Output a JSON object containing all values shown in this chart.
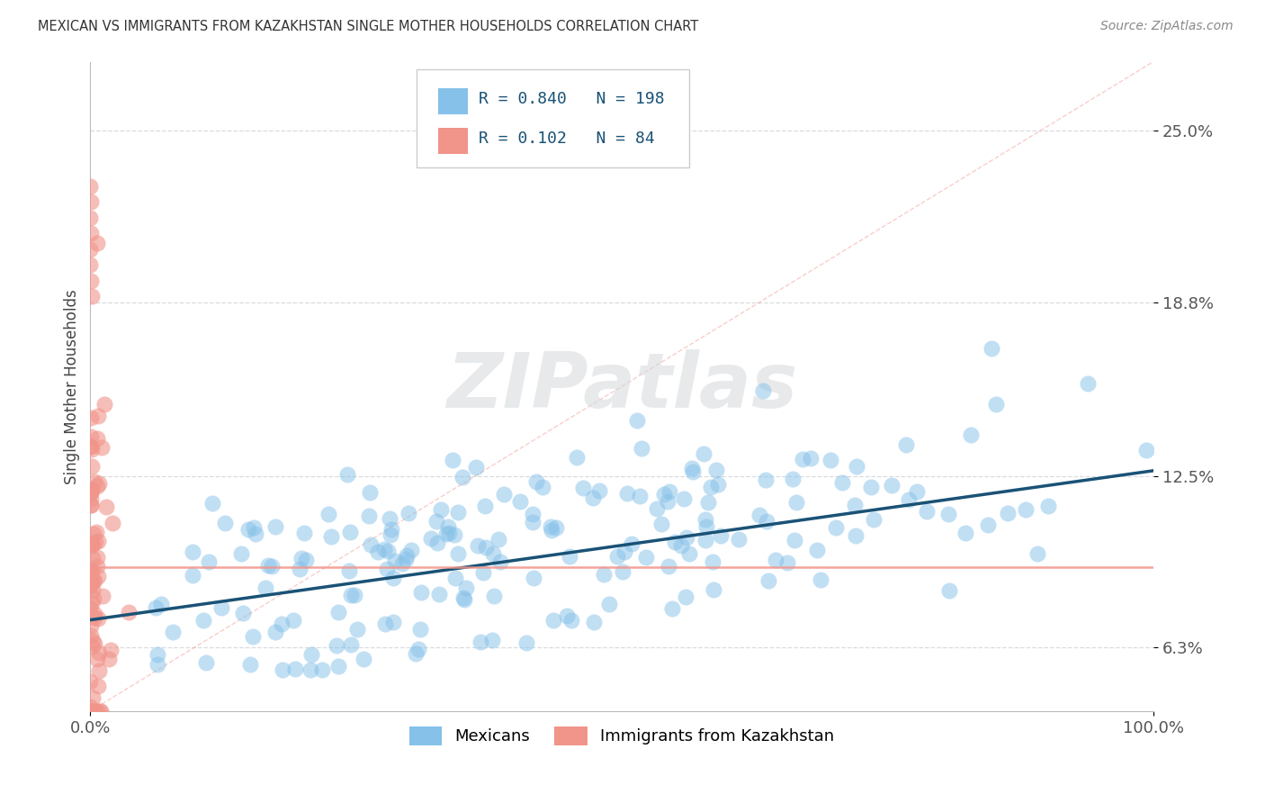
{
  "title": "MEXICAN VS IMMIGRANTS FROM KAZAKHSTAN SINGLE MOTHER HOUSEHOLDS CORRELATION CHART",
  "source": "Source: ZipAtlas.com",
  "ylabel": "Single Mother Households",
  "blue_R": 0.84,
  "blue_N": 198,
  "pink_R": 0.102,
  "pink_N": 84,
  "blue_color": "#85c1e9",
  "pink_color": "#f1948a",
  "blue_line_color": "#1a5276",
  "diag_line_color": "#f1948a",
  "xlim": [
    0.0,
    1.0
  ],
  "ylim": [
    0.04,
    0.275
  ],
  "yticks": [
    0.063,
    0.125,
    0.188,
    0.25
  ],
  "ytick_labels": [
    "6.3%",
    "12.5%",
    "18.8%",
    "25.0%"
  ],
  "xticks": [
    0.0,
    1.0
  ],
  "xtick_labels": [
    "0.0%",
    "100.0%"
  ],
  "legend_labels": [
    "Mexicans",
    "Immigrants from Kazakhstan"
  ],
  "background_color": "#ffffff",
  "grid_color": "#d5d8dc",
  "title_color": "#333333",
  "blue_seed": 42,
  "pink_seed": 17,
  "watermark_text": "ZIPatlas",
  "watermark_color": "#d5d8dc"
}
